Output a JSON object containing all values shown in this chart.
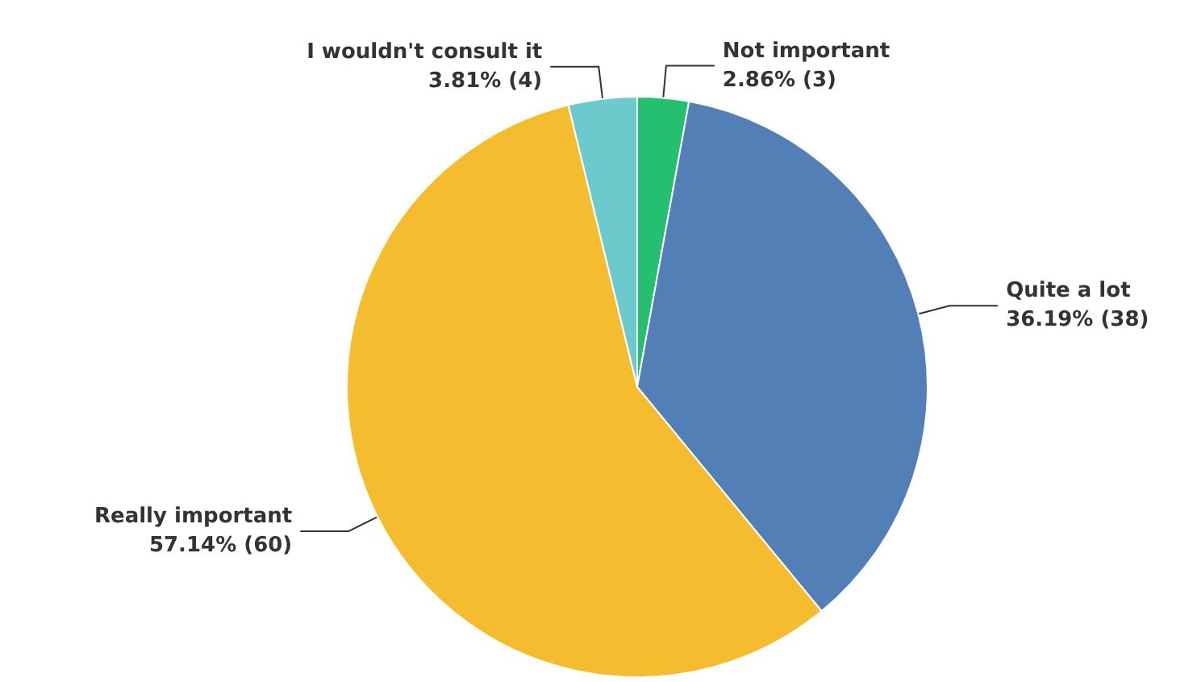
{
  "chart_data": {
    "type": "pie",
    "categories": [
      "Not important",
      "Quite a lot",
      "Really important",
      "I wouldn't consult it"
    ],
    "values": [
      3,
      38,
      60,
      4
    ],
    "value_labels": [
      "2.86% (3)",
      "36.19% (38)",
      "57.14% (60)",
      "3.81% (4)"
    ],
    "colors": [
      "#25bf6f",
      "#527fb5",
      "#f6bc30",
      "#6ccacd"
    ],
    "legend": false
  }
}
